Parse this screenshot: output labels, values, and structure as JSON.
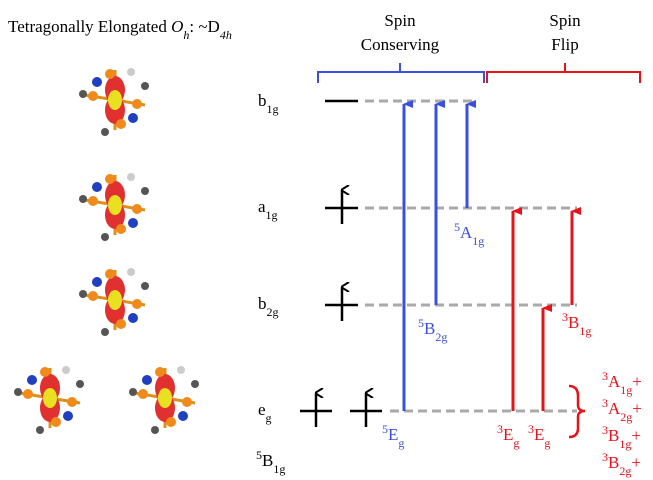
{
  "title": {
    "prefix": "Tetragonally Elongated ",
    "symbol": "O",
    "symbol_sub": "h",
    "separator": ": ~D",
    "group_sub": "4h"
  },
  "headers": [
    {
      "lines": [
        "Spin",
        "Conserving"
      ]
    },
    {
      "lines": [
        "Spin",
        "Flip"
      ]
    }
  ],
  "orbitals": [
    {
      "base": "b",
      "sub": "1g"
    },
    {
      "base": "a",
      "sub": "1g"
    },
    {
      "base": "b",
      "sub": "2g"
    },
    {
      "base": "e",
      "sub": "g"
    }
  ],
  "ground_state": {
    "sup": "5",
    "base": "B",
    "sub": "1g"
  },
  "transitions": [
    {
      "sup": "5",
      "base": "A",
      "sub": "1g"
    },
    {
      "sup": "5",
      "base": "B",
      "sub": "2g"
    },
    {
      "sup": "5",
      "base": "E",
      "sub": "g"
    },
    {
      "sup": "3",
      "base": "B",
      "sub": "1g"
    },
    {
      "sup": "3",
      "base": "E",
      "sub": "g"
    },
    {
      "sup": "3",
      "base": "E",
      "sub": "g"
    }
  ],
  "flip_states": [
    {
      "sup": "3",
      "base": "A",
      "sub": "1g",
      "suffix": "+"
    },
    {
      "sup": "3",
      "base": "A",
      "sub": "2g",
      "suffix": "+"
    },
    {
      "sup": "3",
      "base": "B",
      "sub": "1g",
      "suffix": "+"
    },
    {
      "sup": "3",
      "base": "B",
      "sub": "2g",
      "suffix": "+"
    }
  ]
}
